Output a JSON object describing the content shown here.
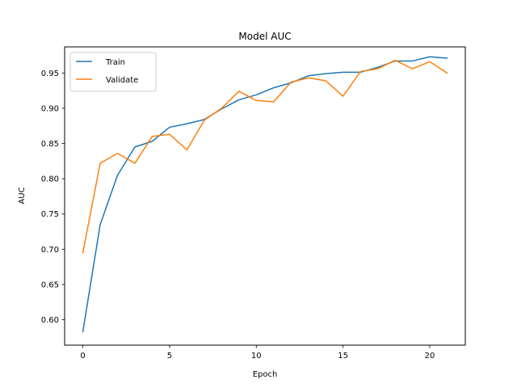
{
  "chart_data": {
    "type": "line",
    "title": "Model AUC",
    "xlabel": "Epoch",
    "ylabel": "AUC",
    "xlim": [
      -1.05,
      22.05
    ],
    "ylim": [
      0.564,
      0.987
    ],
    "xticks": [
      0,
      5,
      10,
      15,
      20
    ],
    "yticks": [
      0.6,
      0.65,
      0.7,
      0.75,
      0.8,
      0.85,
      0.9,
      0.95
    ],
    "ytick_labels": [
      "0.60",
      "0.65",
      "0.70",
      "0.75",
      "0.80",
      "0.85",
      "0.90",
      "0.95"
    ],
    "grid": false,
    "legend_position": "upper-left",
    "x": [
      0,
      1,
      2,
      3,
      4,
      5,
      6,
      7,
      8,
      9,
      10,
      11,
      12,
      13,
      14,
      15,
      16,
      17,
      18,
      19,
      20,
      21
    ],
    "series": [
      {
        "name": "Train",
        "color": "#1f77b4",
        "values": [
          0.583,
          0.735,
          0.805,
          0.845,
          0.853,
          0.873,
          0.878,
          0.884,
          0.899,
          0.912,
          0.919,
          0.929,
          0.936,
          0.946,
          0.949,
          0.951,
          0.951,
          0.958,
          0.967,
          0.967,
          0.973,
          0.971
        ]
      },
      {
        "name": "Validate",
        "color": "#ff7f0e",
        "values": [
          0.695,
          0.822,
          0.836,
          0.822,
          0.86,
          0.863,
          0.841,
          0.883,
          0.9,
          0.924,
          0.911,
          0.909,
          0.937,
          0.943,
          0.939,
          0.917,
          0.952,
          0.956,
          0.968,
          0.956,
          0.966,
          0.95
        ]
      }
    ]
  }
}
